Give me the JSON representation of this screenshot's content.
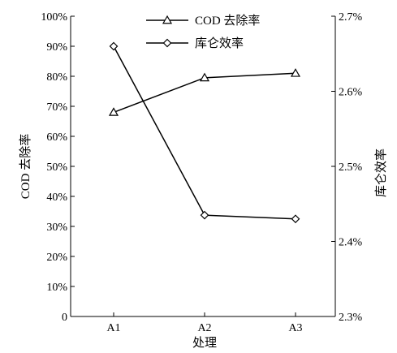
{
  "chart_data": {
    "type": "line",
    "categories": [
      "A1",
      "A2",
      "A3"
    ],
    "xlabel": "处理",
    "ylabel_left": "COD 去除率",
    "ylabel_right": "库仑效率",
    "y_left": {
      "min": 0,
      "max": 100,
      "ticks": [
        "0",
        "10%",
        "20%",
        "30%",
        "40%",
        "50%",
        "60%",
        "70%",
        "80%",
        "90%",
        "100%"
      ]
    },
    "y_right": {
      "min": 2.3,
      "max": 2.7,
      "ticks": [
        "2.3%",
        "2.4%",
        "2.5%",
        "2.6%",
        "2.7%"
      ]
    },
    "series": [
      {
        "name": "COD 去除率",
        "axis": "left",
        "marker": "triangle",
        "values": [
          68,
          79.5,
          81
        ]
      },
      {
        "name": "库仑效率",
        "axis": "right",
        "marker": "diamond",
        "values": [
          2.66,
          2.435,
          2.43
        ]
      }
    ],
    "legend_position": "top-center",
    "grid": false
  }
}
